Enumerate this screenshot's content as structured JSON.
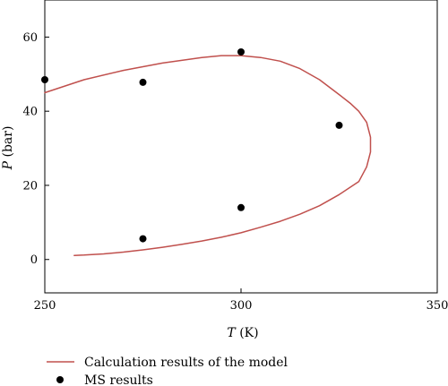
{
  "chart_data": {
    "type": "scatter",
    "xlabel": {
      "var": "T",
      "unit": " (K)"
    },
    "ylabel": {
      "var": "P",
      "unit": " (bar)"
    },
    "xlim": [
      250,
      350
    ],
    "ylim": [
      -9,
      70
    ],
    "xticks": [
      250,
      300,
      350
    ],
    "yticks": [
      0,
      20,
      40,
      60
    ],
    "xtick_labels": [
      "250",
      "300",
      "350"
    ],
    "ytick_labels": [
      "0",
      "20",
      "40",
      "60"
    ],
    "grid": false,
    "legend_position": "below",
    "series": [
      {
        "name": "Calculation results of the model",
        "kind": "line",
        "color": "#c0504d",
        "x": [
          250,
          260,
          270,
          280,
          290,
          295,
          300,
          305,
          310,
          315,
          320,
          325,
          328,
          330,
          332,
          333,
          333,
          332,
          330,
          325,
          320,
          315,
          310,
          305,
          300,
          295,
          290,
          285,
          280,
          275,
          270,
          265,
          260,
          257.5
        ],
        "y": [
          45,
          48.5,
          51,
          53,
          54.5,
          55,
          55,
          54.5,
          53.5,
          51.5,
          48.5,
          44.5,
          42,
          40,
          37,
          33,
          29,
          25,
          21,
          17.5,
          14.5,
          12.2,
          10.3,
          8.7,
          7.2,
          6,
          5,
          4.1,
          3.3,
          2.6,
          2,
          1.5,
          1.2,
          1.1
        ]
      },
      {
        "name": "MS results",
        "kind": "scatter",
        "color": "#000000",
        "x": [
          250,
          275,
          300,
          325,
          300,
          275
        ],
        "y": [
          48.5,
          47.8,
          56,
          36.2,
          14,
          5.6
        ]
      }
    ]
  }
}
